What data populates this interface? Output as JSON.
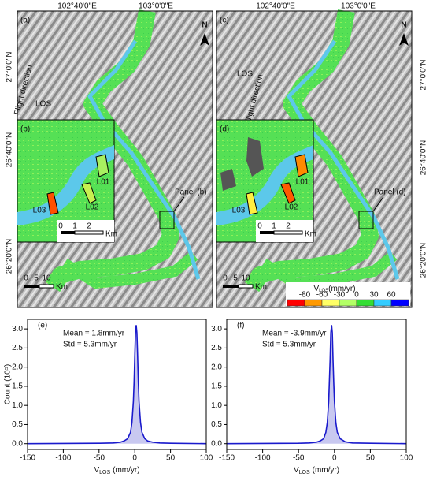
{
  "lon_labels": [
    "102°40'0\"E",
    "103°0'0\"E"
  ],
  "lat_labels": [
    "27°0'0\"N",
    "26°40'0\"N",
    "26°20'0\"N"
  ],
  "maps": [
    {
      "panel": "(a)",
      "inset_panel": "(b)",
      "callout": "Panel (b)",
      "flight": "Flight direction",
      "los": "LOS",
      "north": "N",
      "landslides": [
        "L01",
        "L02",
        "L03"
      ],
      "inset_scale": [
        "0",
        "1",
        "2"
      ],
      "inset_unit": "Km",
      "scale": [
        "0",
        "5",
        "10"
      ],
      "scale_unit": "Km"
    },
    {
      "panel": "(c)",
      "inset_panel": "(d)",
      "callout": "Panel (d)",
      "flight": "Flight direction",
      "los": "LOS",
      "north": "N",
      "landslides": [
        "L01",
        "L02",
        "L03"
      ],
      "inset_scale": [
        "0",
        "1",
        "2"
      ],
      "inset_unit": "Km",
      "scale": [
        "0",
        "5",
        "10"
      ],
      "scale_unit": "Km",
      "legend_title": [
        "V",
        "LOS",
        "(mm/yr)"
      ],
      "legend_ticks": [
        -80,
        -60,
        -30,
        0,
        30,
        60
      ],
      "legend_colors": [
        "#ff0000",
        "#ff9900",
        "#ffff66",
        "#b3ff66",
        "#33dd33",
        "#33ccff",
        "#0000ff"
      ]
    }
  ],
  "chart_data": [
    {
      "type": "line",
      "panel_label": "(e)",
      "annotations": [
        "Mean = 1.8mm/yr",
        "Std = 5.3mm/yr"
      ],
      "ylabel": "Count (10⁵)",
      "xlabel": [
        "V",
        "LOS",
        "(mm/yr)"
      ],
      "color": "#1a1acc",
      "fill": "#c8c8f0",
      "x": [
        -150,
        -50,
        -30,
        -20,
        -15,
        -10,
        -6,
        -4,
        -2,
        -1,
        0,
        1,
        2,
        3,
        4,
        5,
        6,
        8,
        10,
        14,
        18,
        25,
        35,
        50,
        100
      ],
      "values": [
        0,
        0.01,
        0.02,
        0.04,
        0.07,
        0.13,
        0.3,
        0.55,
        1.1,
        1.6,
        2.3,
        2.9,
        3.1,
        2.9,
        2.3,
        1.6,
        1.1,
        0.55,
        0.3,
        0.13,
        0.07,
        0.04,
        0.02,
        0.01,
        0
      ],
      "xlim": [
        -150,
        100
      ],
      "xticks": [
        -150,
        -100,
        -50,
        0,
        50,
        100
      ],
      "ylim": [
        -0.15,
        3.25
      ],
      "yticks": [
        {
          "value": 0,
          "label": "0.0"
        },
        {
          "value": 0.5,
          "label": "0.5"
        },
        {
          "value": 1,
          "label": "1.0"
        },
        {
          "value": 1.5,
          "label": "1.5"
        },
        {
          "value": 2,
          "label": "2.0"
        },
        {
          "value": 2.5,
          "label": "2.5"
        },
        {
          "value": 3,
          "label": "3.0"
        }
      ]
    },
    {
      "type": "line",
      "panel_label": "(f)",
      "annotations": [
        "Mean = -3.9mm/yr",
        "Std = 5.3mm/yr"
      ],
      "xlabel": [
        "V",
        "LOS",
        "(mm/yr)"
      ],
      "color": "#1a1acc",
      "fill": "#c8c8f0",
      "x": [
        -150,
        -50,
        -35,
        -25,
        -20,
        -15,
        -12,
        -10,
        -8,
        -6,
        -5,
        -4,
        -3,
        -2,
        -1,
        0,
        2,
        4,
        8,
        15,
        25,
        50,
        100
      ],
      "values": [
        0,
        0.01,
        0.02,
        0.04,
        0.07,
        0.13,
        0.3,
        0.55,
        1.1,
        2.2,
        2.9,
        3.1,
        2.9,
        2.2,
        1.6,
        1.1,
        0.55,
        0.3,
        0.13,
        0.05,
        0.02,
        0.01,
        0
      ],
      "xlim": [
        -150,
        100
      ],
      "xticks": [
        -150,
        -100,
        -50,
        0,
        50,
        100
      ],
      "ylim": [
        -0.15,
        3.25
      ],
      "yticks": [
        {
          "value": 0,
          "label": "0.0"
        },
        {
          "value": 0.5,
          "label": "0.5"
        },
        {
          "value": 1,
          "label": "1.0"
        },
        {
          "value": 1.5,
          "label": "1.5"
        },
        {
          "value": 2,
          "label": "2.0"
        },
        {
          "value": 2.5,
          "label": "2.5"
        },
        {
          "value": 3,
          "label": "3.0"
        }
      ]
    }
  ]
}
